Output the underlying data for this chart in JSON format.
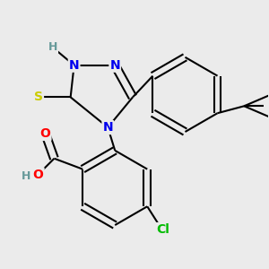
{
  "background_color": "#ebebeb",
  "atom_colors": {
    "N": "#0000ee",
    "O": "#ff0000",
    "S": "#cccc00",
    "Cl": "#00bb00",
    "H_gray": "#669999",
    "C": "#000000"
  },
  "bond_color": "#000000",
  "bond_width": 1.5,
  "font_size_atom": 10,
  "figsize": [
    3.0,
    3.0
  ],
  "dpi": 100
}
